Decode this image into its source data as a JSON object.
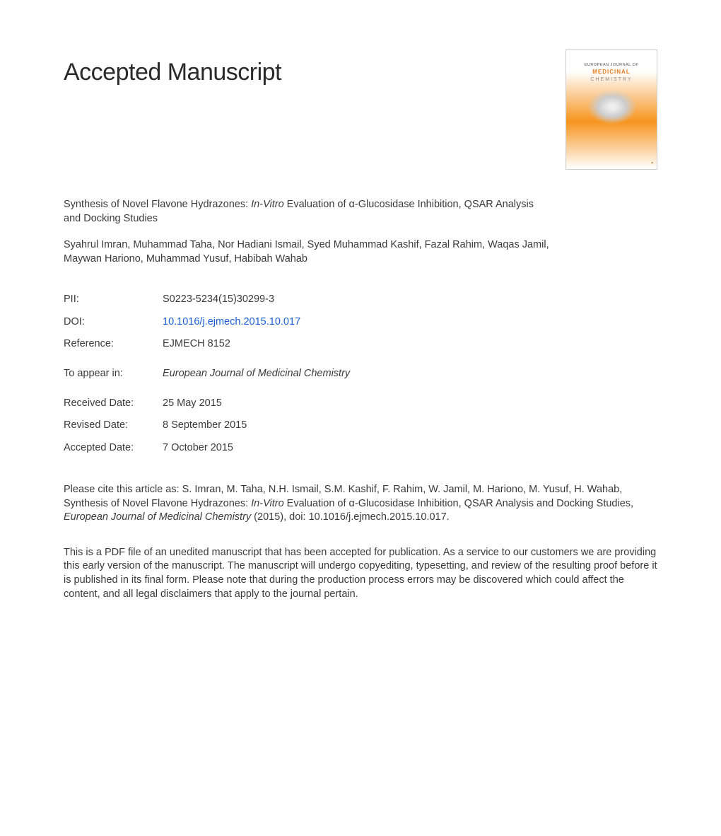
{
  "heading": "Accepted Manuscript",
  "cover": {
    "line1": "EUROPEAN JOURNAL OF",
    "line2": "MEDICINAL",
    "line3": "CHEMISTRY"
  },
  "article": {
    "title_prefix": "Synthesis of Novel Flavone Hydrazones: ",
    "title_italic": "In-Vitro",
    "title_suffix": " Evaluation of α-Glucosidase Inhibition, QSAR Analysis and Docking Studies"
  },
  "authors": "Syahrul Imran, Muhammad Taha, Nor Hadiani Ismail, Syed Muhammad Kashif, Fazal Rahim, Waqas Jamil, Maywan Hariono, Muhammad Yusuf, Habibah Wahab",
  "meta": {
    "pii_label": "PII:",
    "pii_value": "S0223-5234(15)30299-3",
    "doi_label": "DOI:",
    "doi_value": "10.1016/j.ejmech.2015.10.017",
    "ref_label": "Reference:",
    "ref_value": "EJMECH 8152",
    "appear_label": "To appear in:",
    "appear_value": "European Journal of Medicinal Chemistry",
    "received_label": "Received Date:",
    "received_value": "25 May 2015",
    "revised_label": "Revised Date:",
    "revised_value": "8 September 2015",
    "accepted_label": "Accepted Date:",
    "accepted_value": "7 October 2015"
  },
  "citation": {
    "prefix": "Please cite this article as: S. Imran, M. Taha, N.H. Ismail, S.M. Kashif, F. Rahim, W. Jamil, M. Hariono, M. Yusuf, H. Wahab, Synthesis of Novel Flavone Hydrazones: ",
    "italic1": "In-Vitro",
    "mid": " Evaluation of α-Glucosidase Inhibition, QSAR Analysis and Docking Studies, ",
    "italic2": "European Journal of Medicinal Chemistry",
    "suffix": " (2015), doi: 10.1016/j.ejmech.2015.10.017."
  },
  "disclaimer": "This is a PDF file of an unedited manuscript that has been accepted for publication. As a service to our customers we are providing this early version of the manuscript. The manuscript will undergo copyediting, typesetting, and review of the resulting proof before it is published in its final form. Please note that during the production process errors may be discovered which could affect the content, and all legal disclaimers that apply to the journal pertain."
}
